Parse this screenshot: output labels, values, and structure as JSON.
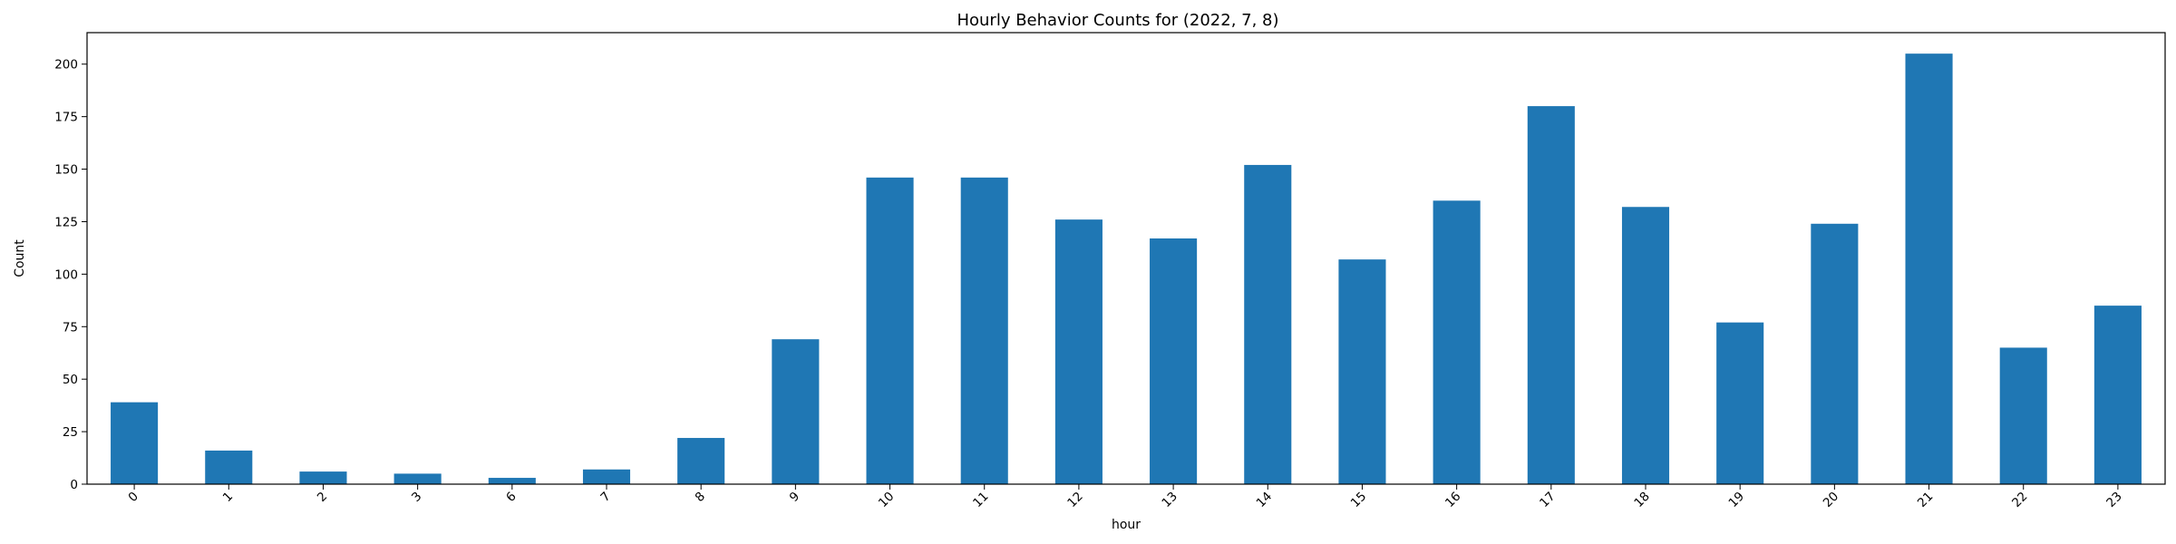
{
  "chart_data": {
    "type": "bar",
    "title": "Hourly Behavior Counts for (2022, 7, 8)",
    "xlabel": "hour",
    "ylabel": "Count",
    "categories": [
      "0",
      "1",
      "2",
      "3",
      "6",
      "7",
      "8",
      "9",
      "10",
      "11",
      "12",
      "13",
      "14",
      "15",
      "16",
      "17",
      "18",
      "19",
      "20",
      "21",
      "22",
      "23"
    ],
    "values": [
      39,
      16,
      6,
      5,
      3,
      7,
      22,
      69,
      146,
      146,
      126,
      117,
      152,
      107,
      135,
      180,
      132,
      77,
      124,
      205,
      65,
      85
    ],
    "ylim": [
      0,
      215
    ],
    "yticks": [
      0,
      25,
      50,
      75,
      100,
      125,
      150,
      175,
      200
    ],
    "bar_color": "#1f77b4",
    "grid": false,
    "legend": null
  }
}
